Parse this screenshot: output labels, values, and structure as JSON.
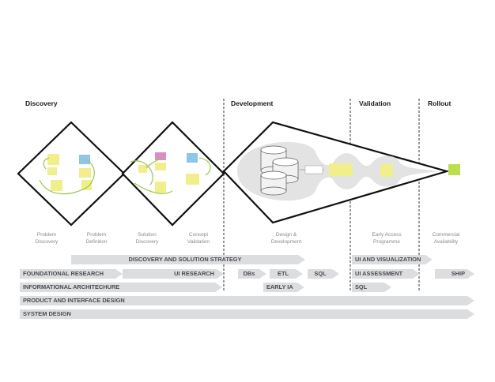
{
  "phases": [
    {
      "id": "discovery",
      "label": "Discovery"
    },
    {
      "id": "development",
      "label": "Development"
    },
    {
      "id": "validation",
      "label": "Validation"
    },
    {
      "id": "rollout",
      "label": "Rollout"
    }
  ],
  "stages": [
    {
      "id": "problem-discovery",
      "label": "Problem\nDiscovery"
    },
    {
      "id": "problem-definition",
      "label": "Problem\nDefinition"
    },
    {
      "id": "solution-discovery",
      "label": "Solution\nDiscovery"
    },
    {
      "id": "concept-validation",
      "label": "Concept\nValidation"
    },
    {
      "id": "design-development",
      "label": "Design &\nDevelopment"
    },
    {
      "id": "early-access",
      "label": "Early Access\nProgramme"
    },
    {
      "id": "commercial-availability",
      "label": "Commercial\nAvailability"
    }
  ],
  "workstreams": [
    {
      "id": "discovery-and-solution-strategy",
      "label": "DISCOVERY AND SOLUTION STRATEGY"
    },
    {
      "id": "ui-and-visualization",
      "label": "UI AND VISUALIZATION"
    },
    {
      "id": "foundational-research",
      "label": "FOUNDATIONAL RESEARCH"
    },
    {
      "id": "ui-research",
      "label": "UI RESEARCH"
    },
    {
      "id": "dbs",
      "label": "DBs"
    },
    {
      "id": "etl",
      "label": "ETL"
    },
    {
      "id": "sql-dev",
      "label": "SQL"
    },
    {
      "id": "ui-assessment",
      "label": "UI ASSESSMENT"
    },
    {
      "id": "ship",
      "label": "SHIP"
    },
    {
      "id": "informational-architecture",
      "label": "INFORMATIONAL ARCHITECHURE"
    },
    {
      "id": "early-ia",
      "label": "EARLY IA"
    },
    {
      "id": "sql-validation",
      "label": "SQL"
    },
    {
      "id": "product-and-interface-design",
      "label": "PRODUCT AND INTERFACE DESIGN"
    },
    {
      "id": "system-design",
      "label": "SYSTEM DESIGN"
    }
  ],
  "colors": {
    "outline": "#111111",
    "divider": "#333333",
    "stage_divider": "#b9b9b9",
    "sticky_yellow": "#f1ef8c",
    "sticky_blue": "#8ec6e8",
    "sticky_purple": "#d68fc6",
    "connector_green": "#9cc64e",
    "bar_fill": "#dcdddf",
    "bar_text": "#4a4a50",
    "cylinder_fill": "#f2f2f2",
    "funnel_fill": "#e3e3e3"
  }
}
